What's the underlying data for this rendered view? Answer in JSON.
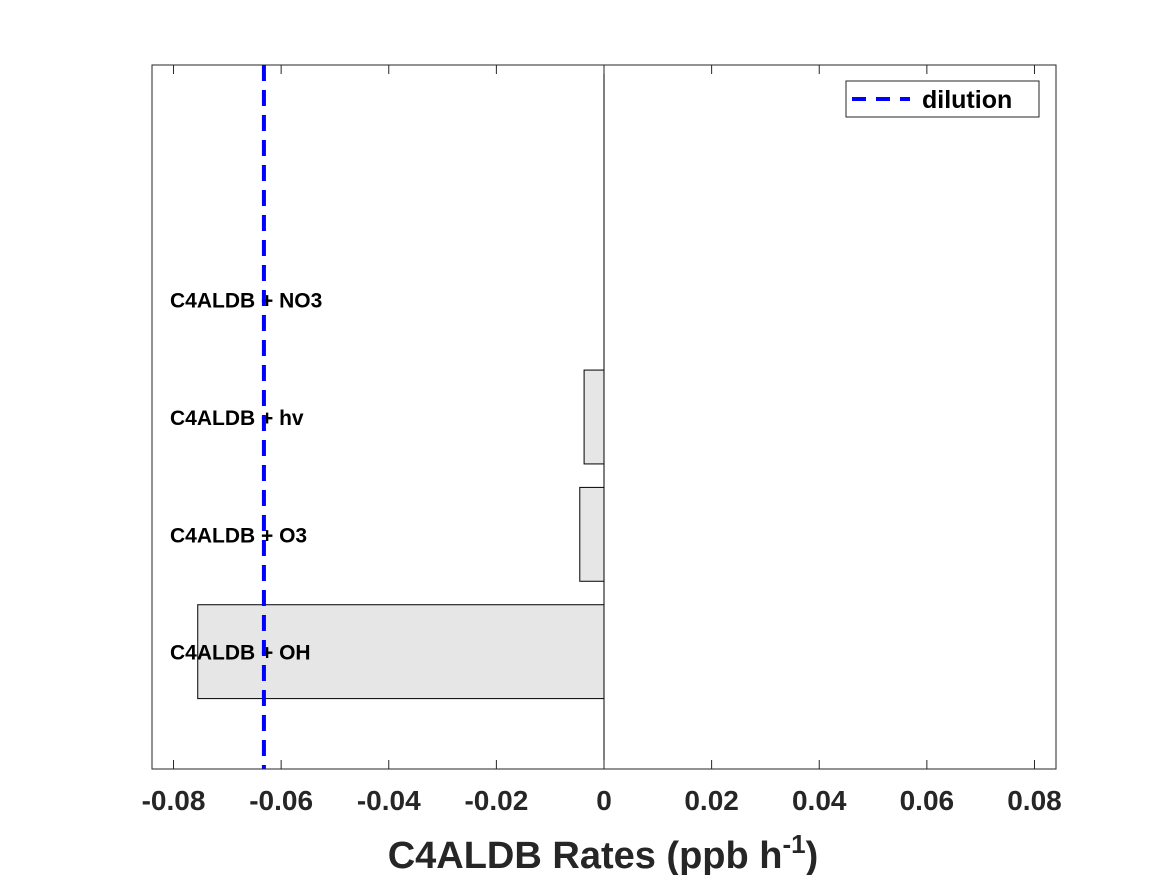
{
  "chart_data": {
    "type": "bar",
    "orientation": "horizontal",
    "categories": [
      "C4ALDB + OH",
      "C4ALDB + O3",
      "C4ALDB + hv",
      "C4ALDB + NO3"
    ],
    "values": [
      -0.0755,
      -0.0045,
      -0.0037,
      0.0
    ],
    "xlim": [
      -0.084,
      0.084
    ],
    "xticks": [
      -0.08,
      -0.06,
      -0.04,
      -0.02,
      0,
      0.02,
      0.04,
      0.06,
      0.08
    ],
    "xtick_labels": [
      "-0.08",
      "-0.06",
      "-0.04",
      "-0.02",
      "0",
      "0.02",
      "0.04",
      "0.06",
      "0.08"
    ],
    "xlabel": {
      "main": "C4ALDB Rates (ppb h",
      "superscript": "-1",
      "close": ")"
    },
    "ylabel": "",
    "title": "",
    "dilution": {
      "value": -0.0632,
      "label": "dilution",
      "color": "#0000ff",
      "style": "dashed"
    },
    "bar_color": "#e6e6e6",
    "legend": {
      "position": "top-right",
      "entries": [
        "dilution"
      ]
    },
    "grid": false
  }
}
